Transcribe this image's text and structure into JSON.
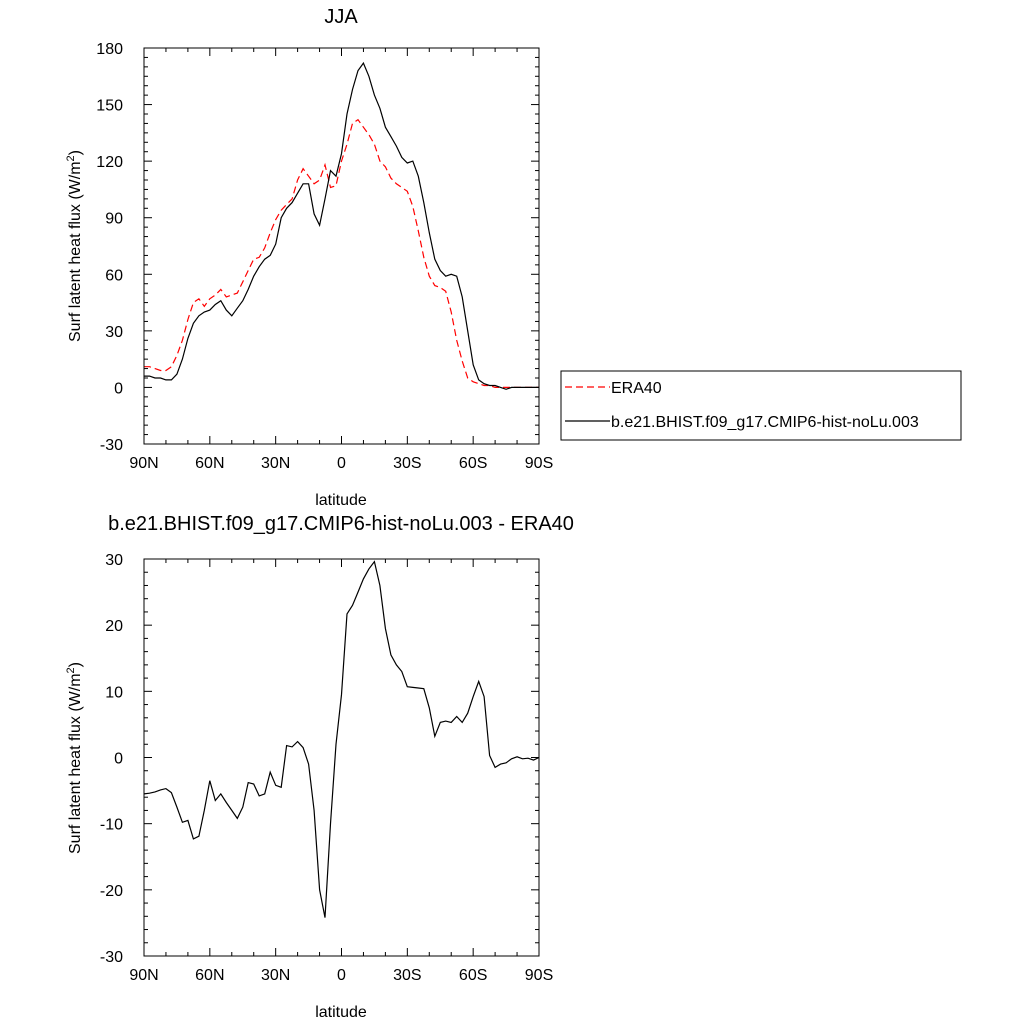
{
  "chart_data": [
    {
      "type": "line",
      "title": "JJA",
      "xlabel": "latitude",
      "ylabel": "Surf latent heat flux (W/m",
      "ylabel_sup": "2",
      "ylabel_end": ")",
      "xlim": [
        90,
        -90
      ],
      "ylim": [
        -30,
        180
      ],
      "x_ticks": [
        {
          "value": 90,
          "label": "90N"
        },
        {
          "value": 60,
          "label": "60N"
        },
        {
          "value": 30,
          "label": "30N"
        },
        {
          "value": 0,
          "label": "0"
        },
        {
          "value": -30,
          "label": "30S"
        },
        {
          "value": -60,
          "label": "60S"
        },
        {
          "value": -90,
          "label": "90S"
        }
      ],
      "y_ticks": [
        {
          "value": 180,
          "label": "180"
        },
        {
          "value": 150,
          "label": "150"
        },
        {
          "value": 120,
          "label": "120"
        },
        {
          "value": 90,
          "label": "90"
        },
        {
          "value": 60,
          "label": "60"
        },
        {
          "value": 30,
          "label": "30"
        },
        {
          "value": 0,
          "label": "0"
        },
        {
          "value": -30,
          "label": "-30"
        }
      ],
      "legend_position": "right",
      "series": [
        {
          "name": "ERA40",
          "color": "#ff0000",
          "dash": "dashed",
          "x": [
            90,
            87.5,
            85,
            82.5,
            80,
            77.5,
            75,
            72.5,
            70,
            67.5,
            65,
            62.5,
            60,
            57.5,
            55,
            52.5,
            50,
            47.5,
            45,
            42.5,
            40,
            37.5,
            35,
            32.5,
            30,
            27.5,
            25,
            22.5,
            20,
            17.5,
            15,
            12.5,
            10,
            7.5,
            5,
            2.5,
            0,
            -2.5,
            -5,
            -7.5,
            -10,
            -12.5,
            -15,
            -17.5,
            -20,
            -22.5,
            -25,
            -27.5,
            -30,
            -32.5,
            -35,
            -37.5,
            -40,
            -42.5,
            -45,
            -47.5,
            -50,
            -52.5,
            -55,
            -57.5,
            -60,
            -62.5,
            -65,
            -67.5,
            -70,
            -72.5,
            -75,
            -77.5,
            -80,
            -82.5,
            -85,
            -87.5,
            -90
          ],
          "y": [
            11,
            11,
            10,
            9,
            9,
            11,
            17,
            25,
            36,
            45,
            47,
            43,
            47,
            49,
            52,
            48,
            49,
            50,
            56,
            62,
            68,
            69,
            74,
            82,
            89,
            94,
            97,
            100,
            110,
            116,
            112,
            108,
            110,
            118,
            106,
            107,
            120,
            129,
            140,
            142,
            138,
            134,
            129,
            120,
            117,
            111,
            108,
            106,
            104,
            96,
            83,
            69,
            59,
            54,
            53,
            51,
            40,
            25,
            14,
            5,
            3,
            2,
            1,
            1,
            0,
            0,
            0,
            0,
            0,
            0,
            0,
            0,
            0
          ]
        },
        {
          "name": "b.e21.BHIST.f09_g17.CMIP6-hist-noLu.003",
          "color": "#000000",
          "dash": "solid",
          "x": [
            90,
            87.5,
            85,
            82.5,
            80,
            77.5,
            75,
            72.5,
            70,
            67.5,
            65,
            62.5,
            60,
            57.5,
            55,
            52.5,
            50,
            47.5,
            45,
            42.5,
            40,
            37.5,
            35,
            32.5,
            30,
            27.5,
            25,
            22.5,
            20,
            17.5,
            15,
            12.5,
            10,
            7.5,
            5,
            2.5,
            0,
            -2.5,
            -5,
            -7.5,
            -10,
            -12.5,
            -15,
            -17.5,
            -20,
            -22.5,
            -25,
            -27.5,
            -30,
            -32.5,
            -35,
            -37.5,
            -40,
            -42.5,
            -45,
            -47.5,
            -50,
            -52.5,
            -55,
            -57.5,
            -60,
            -62.5,
            -65,
            -67.5,
            -70,
            -72.5,
            -75,
            -77.5,
            -80,
            -82.5,
            -85,
            -87.5,
            -90
          ],
          "y": [
            6,
            6,
            5,
            5,
            4,
            4,
            7,
            15,
            26,
            34,
            38,
            40,
            41,
            44,
            46,
            41,
            38,
            42,
            46,
            52,
            59,
            64,
            68,
            70,
            76,
            90,
            95,
            98,
            103,
            108,
            108,
            92,
            86,
            100,
            115,
            112,
            124,
            145,
            158,
            168,
            172,
            165,
            155,
            148,
            138,
            133,
            128,
            122,
            119,
            120,
            112,
            98,
            82,
            68,
            62,
            59,
            60,
            59,
            48,
            30,
            12,
            4,
            2,
            1,
            1,
            0,
            -1,
            0,
            0,
            0,
            0,
            0,
            0
          ]
        }
      ]
    },
    {
      "type": "line",
      "title": "b.e21.BHIST.f09_g17.CMIP6-hist-noLu.003 - ERA40",
      "xlabel": "latitude",
      "ylabel": "Surf latent heat flux (W/m",
      "ylabel_sup": "2",
      "ylabel_end": ")",
      "xlim": [
        90,
        -90
      ],
      "ylim": [
        -30,
        30
      ],
      "x_ticks": [
        {
          "value": 90,
          "label": "90N"
        },
        {
          "value": 60,
          "label": "60N"
        },
        {
          "value": 30,
          "label": "30N"
        },
        {
          "value": 0,
          "label": "0"
        },
        {
          "value": -30,
          "label": "30S"
        },
        {
          "value": -60,
          "label": "60S"
        },
        {
          "value": -90,
          "label": "90S"
        }
      ],
      "y_ticks": [
        {
          "value": 30,
          "label": "30"
        },
        {
          "value": 20,
          "label": "20"
        },
        {
          "value": 10,
          "label": "10"
        },
        {
          "value": 0,
          "label": "0"
        },
        {
          "value": -10,
          "label": "-10"
        },
        {
          "value": -20,
          "label": "-20"
        },
        {
          "value": -30,
          "label": "-30"
        }
      ],
      "series": [
        {
          "color": "#000000",
          "dash": "solid",
          "x": [
            90,
            87.5,
            85,
            82.5,
            80,
            77.5,
            75,
            72.5,
            70,
            67.5,
            65,
            62.5,
            60,
            57.5,
            55,
            52.5,
            50,
            47.5,
            45,
            42.5,
            40,
            37.5,
            35,
            32.5,
            30,
            27.5,
            25,
            22.5,
            20,
            17.5,
            15,
            12.5,
            10,
            7.5,
            5,
            2.5,
            0,
            -2.5,
            -5,
            -7.5,
            -10,
            -12.5,
            -15,
            -17.5,
            -20,
            -22.5,
            -25,
            -27.5,
            -30,
            -32.5,
            -35,
            -37.5,
            -40,
            -42.5,
            -45,
            -47.5,
            -50,
            -52.5,
            -55,
            -57.5,
            -60,
            -62.5,
            -65,
            -67.5,
            -70,
            -72.5,
            -75,
            -77.5,
            -80,
            -82.5,
            -85,
            -87.5,
            -90
          ],
          "y": [
            -5.5,
            -5.4,
            -5.2,
            -4.9,
            -4.7,
            -5.3,
            -7.5,
            -9.8,
            -9.5,
            -12.3,
            -11.9,
            -8.0,
            -3.5,
            -6.5,
            -5.5,
            -6.8,
            -8.0,
            -9.2,
            -7.5,
            -3.8,
            -4.0,
            -5.8,
            -5.5,
            -2.2,
            -4.2,
            -4.5,
            1.8,
            1.6,
            2.4,
            1.5,
            -1.0,
            -8.0,
            -20.0,
            -24.2,
            -10.0,
            2.0,
            9.5,
            21.7,
            23.0,
            25.0,
            27.0,
            28.5,
            29.6,
            26.0,
            19.5,
            15.5,
            14.0,
            13.0,
            10.7,
            10.6,
            10.5,
            10.4,
            7.5,
            3.2,
            5.3,
            5.5,
            5.3,
            6.2,
            5.3,
            6.7,
            9.2,
            11.5,
            9.2,
            0.3,
            -1.5,
            -1.0,
            -0.8,
            -0.2,
            0.1,
            -0.2,
            -0.1,
            -0.4,
            0.0
          ]
        }
      ]
    }
  ]
}
